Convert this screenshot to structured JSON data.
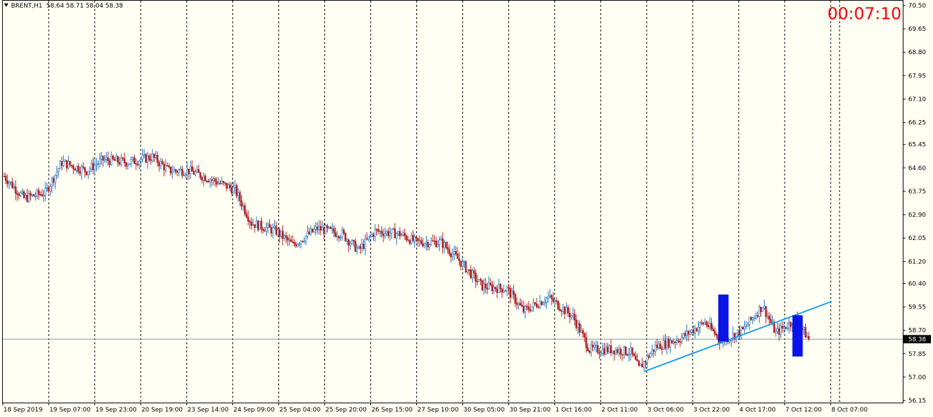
{
  "header": {
    "symbol": "BRENT,H1",
    "ohlc": "58.64 58.71 58.04 58.38"
  },
  "timer": "00:07:10",
  "colors": {
    "background": "#fffff4",
    "bull": "#1e72c8",
    "bear": "#b22222",
    "trendline": "#1ea0f0",
    "marker": "#0a14e6",
    "price_line": "#8a9aaa",
    "price_tag": "#000000"
  },
  "chart_data": {
    "type": "candlestick",
    "symbol": "BRENT",
    "timeframe": "H1",
    "y_ticks": [
      "70.50",
      "69.65",
      "68.80",
      "67.95",
      "67.10",
      "66.25",
      "65.45",
      "64.60",
      "63.75",
      "62.90",
      "62.05",
      "61.20",
      "60.40",
      "59.55",
      "58.70",
      "57.85",
      "57.00",
      "56.15"
    ],
    "ylim": [
      56.15,
      70.5
    ],
    "x_ticks": [
      "18 Sep 2019",
      "19 Sep 07:00",
      "19 Sep 23:00",
      "20 Sep 19:00",
      "23 Sep 14:00",
      "24 Sep 09:00",
      "25 Sep 04:00",
      "25 Sep 20:00",
      "26 Sep 15:00",
      "27 Sep 10:00",
      "30 Sep 05:00",
      "30 Sep 21:00",
      "1 Oct 16:00",
      "2 Oct 11:00",
      "3 Oct 06:00",
      "3 Oct 22:00",
      "4 Oct 17:00",
      "7 Oct 12:00",
      "8 Oct 07:00"
    ],
    "current_price": "58.38",
    "last_bar": {
      "open": 58.64,
      "high": 58.71,
      "low": 58.04,
      "close": 58.38
    },
    "price_path": [
      {
        "bar": 0,
        "price": 64.3
      },
      {
        "bar": 12,
        "price": 63.5
      },
      {
        "bar": 25,
        "price": 63.7
      },
      {
        "bar": 35,
        "price": 64.8
      },
      {
        "bar": 50,
        "price": 64.5
      },
      {
        "bar": 60,
        "price": 64.9
      },
      {
        "bar": 75,
        "price": 64.8
      },
      {
        "bar": 90,
        "price": 65.0
      },
      {
        "bar": 100,
        "price": 64.5
      },
      {
        "bar": 112,
        "price": 64.5
      },
      {
        "bar": 125,
        "price": 64.2
      },
      {
        "bar": 140,
        "price": 63.8
      },
      {
        "bar": 150,
        "price": 62.6
      },
      {
        "bar": 165,
        "price": 62.3
      },
      {
        "bar": 175,
        "price": 61.8
      },
      {
        "bar": 190,
        "price": 62.4
      },
      {
        "bar": 205,
        "price": 62.2
      },
      {
        "bar": 215,
        "price": 61.6
      },
      {
        "bar": 225,
        "price": 62.3
      },
      {
        "bar": 240,
        "price": 62.2
      },
      {
        "bar": 250,
        "price": 61.9
      },
      {
        "bar": 265,
        "price": 61.9
      },
      {
        "bar": 275,
        "price": 61.3
      },
      {
        "bar": 290,
        "price": 60.3
      },
      {
        "bar": 305,
        "price": 60.2
      },
      {
        "bar": 315,
        "price": 59.4
      },
      {
        "bar": 330,
        "price": 59.9
      },
      {
        "bar": 345,
        "price": 59.2
      },
      {
        "bar": 355,
        "price": 58.0
      },
      {
        "bar": 370,
        "price": 58.0
      },
      {
        "bar": 380,
        "price": 57.9
      },
      {
        "bar": 385,
        "price": 57.3
      },
      {
        "bar": 395,
        "price": 58.1
      },
      {
        "bar": 410,
        "price": 58.4
      },
      {
        "bar": 425,
        "price": 59.0
      },
      {
        "bar": 435,
        "price": 58.3
      },
      {
        "bar": 448,
        "price": 58.7
      },
      {
        "bar": 460,
        "price": 59.6
      },
      {
        "bar": 468,
        "price": 58.6
      },
      {
        "bar": 480,
        "price": 59.1
      },
      {
        "bar": 488,
        "price": 58.38
      }
    ],
    "trendline": {
      "from": {
        "bar": 388,
        "price": 57.2
      },
      "to": {
        "bar": 502,
        "price": 59.75
      }
    },
    "markers": [
      {
        "bar": 436,
        "top": 60.0,
        "bottom": 58.3
      },
      {
        "bar": 481,
        "top": 59.25,
        "bottom": 57.75
      }
    ]
  }
}
